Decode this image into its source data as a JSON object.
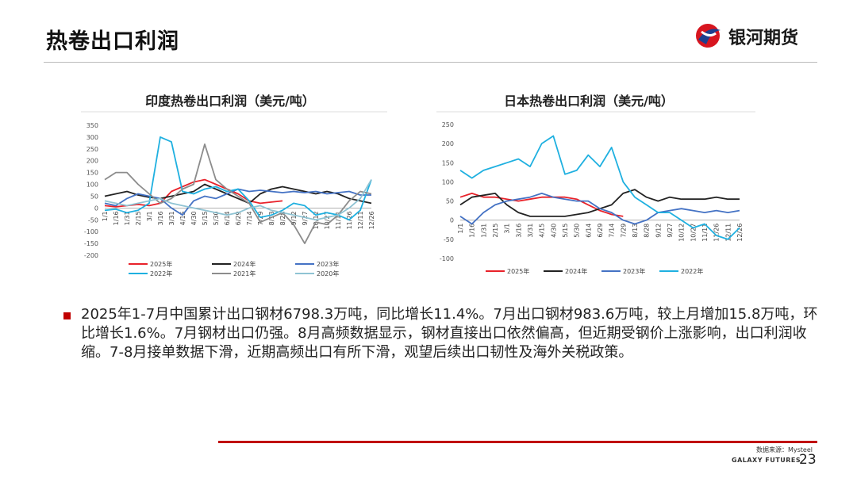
{
  "header": {
    "title": "热卷出口利润",
    "brand": "银河期货"
  },
  "chart_data": [
    {
      "type": "line",
      "title": "印度热卷出口利润（美元/吨）",
      "categories": [
        "1/1",
        "1/16",
        "1/31",
        "2/15",
        "3/1",
        "3/16",
        "3/31",
        "4/15",
        "4/30",
        "5/15",
        "5/30",
        "6/14",
        "6/29",
        "7/14",
        "7/29",
        "8/13",
        "8/28",
        "9/12",
        "9/27",
        "10/12",
        "10/27",
        "11/11",
        "11/26",
        "12/11",
        "12/26"
      ],
      "series": [
        {
          "name": "2025年",
          "color": "#e8222a",
          "values": [
            10,
            5,
            10,
            15,
            10,
            20,
            70,
            90,
            110,
            120,
            100,
            80,
            60,
            30,
            20,
            25,
            30,
            null,
            null,
            null,
            null,
            null,
            null,
            null,
            null
          ]
        },
        {
          "name": "2024年",
          "color": "#222222",
          "values": [
            50,
            60,
            70,
            55,
            45,
            40,
            50,
            60,
            70,
            100,
            80,
            60,
            40,
            20,
            60,
            80,
            90,
            80,
            70,
            60,
            70,
            60,
            40,
            30,
            20
          ]
        },
        {
          "name": "2023年",
          "color": "#4472c4",
          "values": [
            20,
            10,
            40,
            60,
            50,
            40,
            0,
            -30,
            30,
            50,
            40,
            60,
            80,
            70,
            75,
            70,
            65,
            70,
            65,
            70,
            60,
            65,
            70,
            55,
            55
          ]
        },
        {
          "name": "2022年",
          "color": "#1fb0e0",
          "values": [
            -10,
            -5,
            -20,
            -10,
            20,
            300,
            280,
            70,
            60,
            80,
            90,
            70,
            80,
            30,
            -40,
            -30,
            -10,
            20,
            10,
            -30,
            -20,
            -30,
            -50,
            -10,
            120
          ]
        },
        {
          "name": "2021年",
          "color": "#8c8c8c",
          "values": [
            120,
            150,
            150,
            100,
            60,
            20,
            40,
            80,
            100,
            270,
            120,
            80,
            50,
            20,
            -60,
            -40,
            -20,
            -70,
            -150,
            -60,
            -70,
            -30,
            30,
            70,
            60
          ]
        },
        {
          "name": "2020年",
          "color": "#8fc3d3",
          "values": [
            30,
            20,
            10,
            20,
            30,
            40,
            20,
            10,
            0,
            -10,
            -20,
            -30,
            -20,
            0,
            10,
            -10,
            -20,
            -30,
            -40,
            -50,
            -40,
            -30,
            0,
            40,
            120
          ]
        }
      ],
      "ylim": [
        -200,
        350
      ],
      "yticks": [
        -200,
        -150,
        -100,
        -50,
        0,
        50,
        100,
        150,
        200,
        250,
        300,
        350
      ],
      "legend": "bottom"
    },
    {
      "type": "line",
      "title": "日本热卷出口利润（美元/吨）",
      "categories": [
        "1/1",
        "1/16",
        "1/31",
        "2/15",
        "3/1",
        "3/16",
        "3/31",
        "4/15",
        "4/30",
        "5/15",
        "5/30",
        "6/14",
        "6/29",
        "7/14",
        "7/29",
        "8/13",
        "8/28",
        "9/12",
        "9/27",
        "10/12",
        "10/27",
        "11/11",
        "11/26",
        "12/11",
        "12/26"
      ],
      "series": [
        {
          "name": "2025年",
          "color": "#e8222a",
          "values": [
            60,
            70,
            60,
            60,
            55,
            50,
            55,
            60,
            60,
            60,
            55,
            40,
            25,
            15,
            10,
            null,
            null,
            null,
            null,
            null,
            null,
            null,
            null,
            null,
            null
          ]
        },
        {
          "name": "2024年",
          "color": "#222222",
          "values": [
            40,
            60,
            65,
            70,
            40,
            20,
            10,
            10,
            10,
            10,
            15,
            20,
            30,
            40,
            70,
            80,
            60,
            50,
            60,
            55,
            55,
            55,
            60,
            55,
            55
          ]
        },
        {
          "name": "2023年",
          "color": "#4472c4",
          "values": [
            10,
            -10,
            20,
            40,
            50,
            55,
            60,
            70,
            60,
            55,
            50,
            50,
            30,
            20,
            0,
            -10,
            0,
            20,
            25,
            30,
            25,
            20,
            25,
            20,
            25
          ]
        },
        {
          "name": "2022年",
          "color": "#1fb0e0",
          "values": [
            130,
            110,
            130,
            140,
            150,
            160,
            140,
            200,
            220,
            120,
            130,
            170,
            140,
            190,
            100,
            60,
            40,
            20,
            20,
            0,
            -20,
            -10,
            -40,
            -50,
            -20
          ]
        }
      ],
      "ylim": [
        -100,
        250
      ],
      "yticks": [
        -100,
        -50,
        0,
        50,
        100,
        150,
        200,
        250
      ],
      "legend": "bottom"
    }
  ],
  "text": {
    "paragraph": "2025年1-7月中国累计出口钢材6798.3万吨，同比增长11.4%。7月出口钢材983.6万吨，较上月增加15.8万吨，环比增长1.6%。7月钢材出口仍强。8月高频数据显示，钢材直接出口依然偏高，但近期受钢价上涨影响，出口利润收缩。7-8月接单数据下滑，近期高频出口有所下滑，观望后续出口韧性及海外关税政策。"
  },
  "footer": {
    "source": "数据来源：Mysteel",
    "company": "GALAXY FUTURES",
    "page": "23"
  }
}
